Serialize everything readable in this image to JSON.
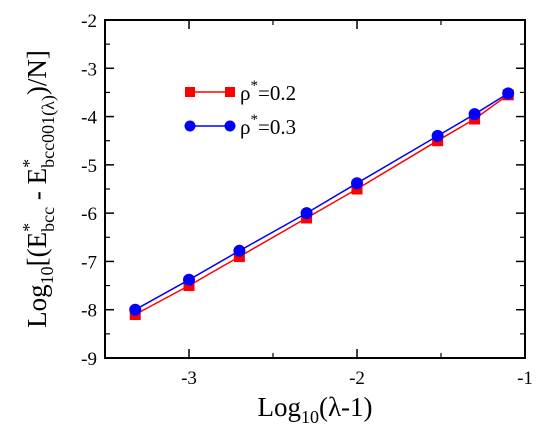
{
  "chart_data": {
    "type": "line",
    "xlabel": {
      "prefix": "Log",
      "sub": "10",
      "suffix": "(λ-1)"
    },
    "ylabel": {
      "prefix": "Log",
      "sub": "10",
      "open": "[(E",
      "sup1": "*",
      "sub1": "bcc",
      "mid": " - E",
      "sup2": "*",
      "sub2": "bcc001(λ)",
      "close": ")/N]"
    },
    "xlim": [
      -3.5,
      -1
    ],
    "ylim": [
      -9,
      -2
    ],
    "xticks": [
      -3,
      -2,
      -1
    ],
    "xtick_labels": [
      "-3",
      "-2",
      "-1"
    ],
    "yticks": [
      -9,
      -8,
      -7,
      -6,
      -5,
      -4,
      -3,
      -2
    ],
    "ytick_labels": [
      "-9",
      "-8",
      "-7",
      "-6",
      "-5",
      "-4",
      "-3",
      "-2"
    ],
    "grid": false,
    "legend_position": "top-left",
    "series": [
      {
        "legend": {
          "base": "ρ",
          "sup": "*",
          "rest": "=0.2"
        },
        "marker": "square",
        "color": "#ff0000",
        "x": [
          -3.32,
          -3.0,
          -2.7,
          -2.3,
          -2.0,
          -1.52,
          -1.3,
          -1.1
        ],
        "y": [
          -8.1,
          -7.5,
          -6.9,
          -6.1,
          -5.5,
          -4.5,
          -4.05,
          -3.55
        ]
      },
      {
        "legend": {
          "base": "ρ",
          "sup": "*",
          "rest": "=0.3"
        },
        "marker": "circle",
        "color": "#0000ff",
        "x": [
          -3.32,
          -3.0,
          -2.7,
          -2.3,
          -2.0,
          -1.52,
          -1.3,
          -1.1
        ],
        "y": [
          -8.0,
          -7.38,
          -6.78,
          -6.0,
          -5.38,
          -4.4,
          -3.95,
          -3.52
        ]
      }
    ]
  }
}
